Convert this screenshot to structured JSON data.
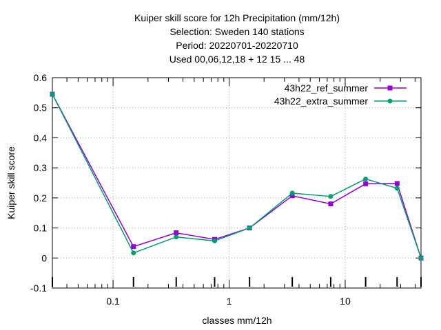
{
  "chart_data": {
    "type": "line",
    "title_lines": [
      "Kuiper skill score  for 12h Precipitation (mm/12h)",
      "Selection: Sweden    140 stations",
      "Period: 20220701-20220710",
      "Used  00,06,12,18  + 12 15 ... 48"
    ],
    "xlabel": "classes mm/12h",
    "ylabel": "Kuiper skill score",
    "xscale": "log",
    "xlim": [
      0.03,
      45
    ],
    "ylim": [
      -0.1,
      0.6
    ],
    "yticks": [
      "-0.1",
      "0",
      "0.1",
      "0.2",
      "0.3",
      "0.4",
      "0.5",
      "0.6"
    ],
    "xticks": [
      "0.1",
      "1",
      "10"
    ],
    "grid": true,
    "legend_position": "top-right",
    "series": [
      {
        "name": "43h22_ref_summer",
        "color": "#9400d3",
        "marker": "filled-square",
        "x": [
          0.03,
          0.15,
          0.35,
          0.75,
          1.5,
          3.5,
          7.5,
          15,
          28,
          45
        ],
        "y": [
          0.545,
          0.038,
          0.084,
          0.062,
          0.1,
          0.207,
          0.18,
          0.247,
          0.248,
          0.0
        ]
      },
      {
        "name": "43h22_extra_summer",
        "color": "#009e73",
        "marker": "filled-circle",
        "x": [
          0.03,
          0.15,
          0.35,
          0.75,
          1.5,
          3.5,
          7.5,
          15,
          28,
          45
        ],
        "y": [
          0.545,
          0.017,
          0.07,
          0.057,
          0.1,
          0.216,
          0.205,
          0.263,
          0.232,
          0.0
        ]
      }
    ]
  }
}
